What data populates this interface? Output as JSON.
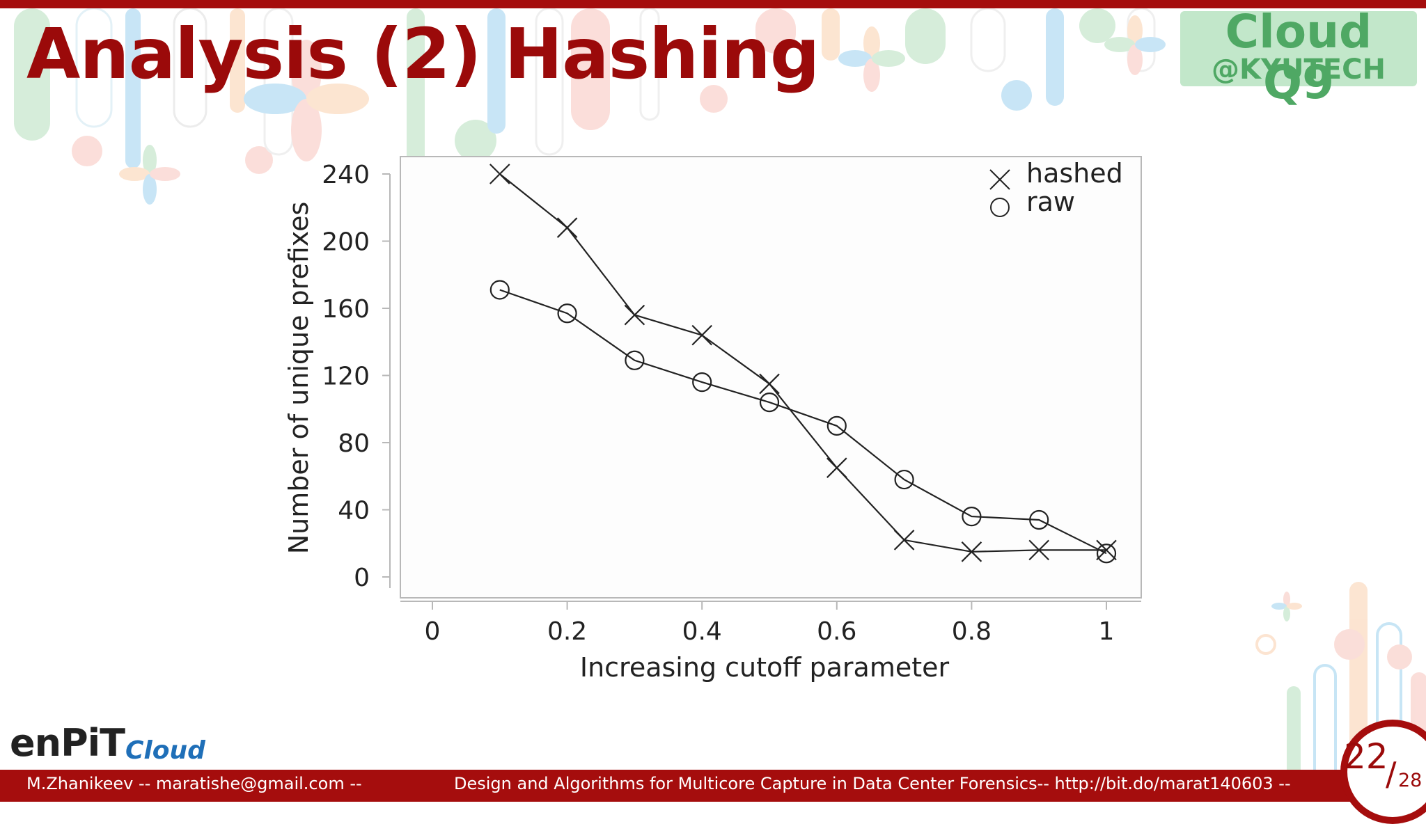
{
  "slide": {
    "title": "Analysis (2) Hashing",
    "logo": {
      "main": "Cloud Q9",
      "sub": "@KYUTECH"
    },
    "enpit_logo": {
      "main": "enPiT",
      "sub": "Cloud"
    },
    "footer": {
      "left": "M.Zhanikeev -- maratishe@gmail.com --",
      "center": "Design and Algorithms for Multicore Capture in Data Center Forensics-- http://bit.do/marat140603 --"
    },
    "page": {
      "current": "22",
      "slash": "/",
      "total": "28"
    },
    "colors": {
      "accent": "#a50d0d",
      "title": "#9b0a0a",
      "logo_green": "#4fa864"
    }
  },
  "chart_data": {
    "type": "line",
    "xlabel": "Increasing cutoff parameter",
    "ylabel": "Number of unique prefixes",
    "xlim": [
      0,
      1
    ],
    "ylim": [
      0,
      240
    ],
    "xticks": [
      "0",
      "0.2",
      "0.4",
      "0.6",
      "0.8",
      "1"
    ],
    "yticks": [
      "0",
      "40",
      "80",
      "120",
      "160",
      "200",
      "240"
    ],
    "legend_position": "top-right",
    "grid": false,
    "x": [
      0.1,
      0.2,
      0.3,
      0.4,
      0.5,
      0.6,
      0.7,
      0.8,
      0.9,
      1.0
    ],
    "series": [
      {
        "name": "hashed",
        "marker": "x",
        "values": [
          240,
          208,
          156,
          144,
          115,
          65,
          22,
          15,
          16,
          16
        ]
      },
      {
        "name": "raw",
        "marker": "o",
        "values": [
          171,
          157,
          129,
          116,
          104,
          90,
          58,
          36,
          34,
          14
        ]
      }
    ]
  }
}
